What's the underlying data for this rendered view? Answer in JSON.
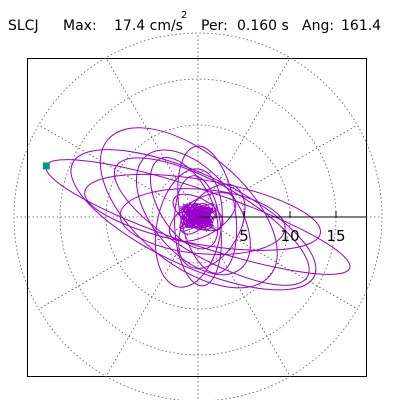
{
  "header": {
    "station": "SLCJ",
    "max_label": "Max:",
    "max_value": "17.4 cm/s",
    "max_exp": "2",
    "per_label": "Per:",
    "per_value": "0.160 s",
    "ang_label": "Ang:",
    "ang_value": "161.4"
  },
  "chart_data": {
    "type": "line",
    "title": "SLCJ  Max: 17.4 cm/s2  Per: 0.160 s  Ang: 161.4",
    "polar_rings": [
      5,
      10,
      15,
      20
    ],
    "radial_ticks": [
      "5",
      "10",
      "15"
    ],
    "radial_tick_values": [
      5,
      10,
      15
    ],
    "max_radius": 20,
    "spoke_angles_deg": [
      0,
      30,
      60,
      90,
      120,
      150,
      180,
      210,
      240,
      270,
      300,
      330
    ],
    "grid": "dotted",
    "series": [
      {
        "color": "#9900CC",
        "ellipses": [
          {
            "cx": 0,
            "cy": 0,
            "a": 17.4,
            "b": 3.0,
            "angle": 161.4
          },
          {
            "cx": -0.5,
            "cy": -0.3,
            "a": 14.5,
            "b": 5.0,
            "angle": 155
          },
          {
            "cx": 0.5,
            "cy": 0.5,
            "a": 13.0,
            "b": 3.5,
            "angle": 170
          },
          {
            "cx": -1.0,
            "cy": 1.0,
            "a": 11.5,
            "b": 6.0,
            "angle": 140
          },
          {
            "cx": 1.5,
            "cy": -0.5,
            "a": 12.0,
            "b": 4.0,
            "angle": 150
          },
          {
            "cx": 0.5,
            "cy": -0.5,
            "a": 9.0,
            "b": 3.5,
            "angle": 175
          },
          {
            "cx": -0.5,
            "cy": 0.5,
            "a": 8.0,
            "b": 4.5,
            "angle": 130
          },
          {
            "cx": 1.0,
            "cy": 0.8,
            "a": 7.0,
            "b": 3.0,
            "angle": 100
          },
          {
            "cx": -1.0,
            "cy": -1.2,
            "a": 6.5,
            "b": 3.5,
            "angle": 80
          },
          {
            "cx": 0.0,
            "cy": -1.5,
            "a": 6.0,
            "b": 2.5,
            "angle": 95
          },
          {
            "cx": 1.5,
            "cy": -1.0,
            "a": 5.0,
            "b": 3.0,
            "angle": 60
          },
          {
            "cx": -1.5,
            "cy": 1.5,
            "a": 5.5,
            "b": 2.8,
            "angle": 120
          },
          {
            "cx": 0.5,
            "cy": 0.0,
            "a": 4.0,
            "b": 2.0,
            "angle": 30
          },
          {
            "cx": 0.0,
            "cy": 0.5,
            "a": 3.0,
            "b": 1.5,
            "angle": 150
          },
          {
            "cx": -0.3,
            "cy": -0.2,
            "a": 2.0,
            "b": 1.2,
            "angle": 45
          },
          {
            "cx": 0.2,
            "cy": 0.2,
            "a": 1.4,
            "b": 0.8,
            "angle": 120
          },
          {
            "cx": 0.0,
            "cy": 0.0,
            "a": 0.9,
            "b": 0.6,
            "angle": 10
          }
        ]
      }
    ],
    "start_marker": {
      "color": "#009977"
    }
  }
}
